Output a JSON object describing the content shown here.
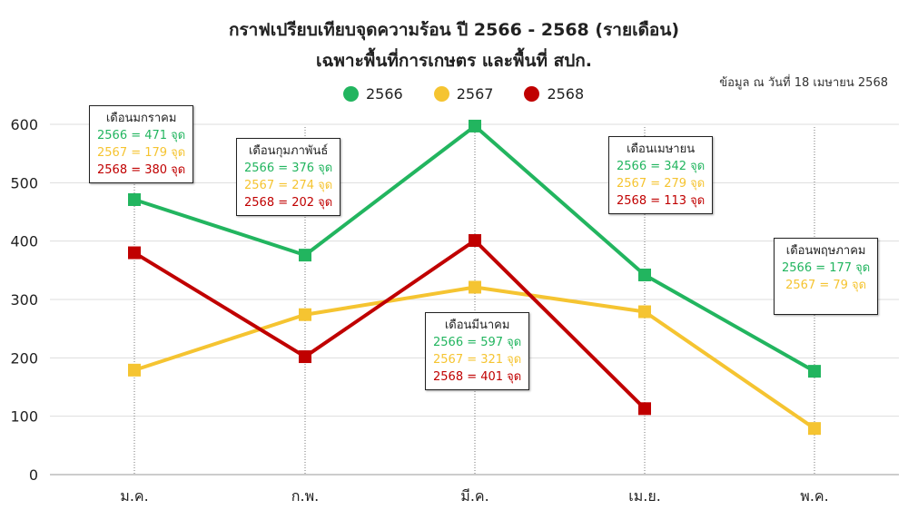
{
  "title_line1": "กราฟเปรียบเทียบจุดความร้อน ปี 2566 - 2568 (รายเดือน)",
  "title_line2": "เฉพาะพื้นที่การเกษตร และพื้นที่ สปก.",
  "note": "ข้อมูล ณ วันที่ 18 เมษายน 2568",
  "colors": {
    "s2566": "#22b55f",
    "s2567": "#f5c431",
    "s2568": "#c00000"
  },
  "legend": [
    "2566",
    "2567",
    "2568"
  ],
  "callouts": {
    "jan": {
      "title": "เดือนมกราคม",
      "l2566": "2566 = 471 จุด",
      "l2567": "2567 = 179 จุด",
      "l2568": "2568 = 380 จุด"
    },
    "feb": {
      "title": "เดือนกุมภาพันธ์",
      "l2566": "2566 = 376 จุด",
      "l2567": "2567 = 274 จุด",
      "l2568": "2568 = 202 จุด"
    },
    "mar": {
      "title": "เดือนมีนาคม",
      "l2566": "2566 = 597 จุด",
      "l2567": "2567 = 321 จุด",
      "l2568": "2568 = 401 จุด"
    },
    "apr": {
      "title": "เดือนเมษายน",
      "l2566": "2566 = 342 จุด",
      "l2567": "2567 = 279 จุด",
      "l2568": "2568 = 113 จุด"
    },
    "may": {
      "title": "เดือนพฤษภาคม",
      "l2566": "2566 = 177 จุด",
      "l2567": "2567 = 79 จุด"
    }
  },
  "chart_data": {
    "type": "line",
    "title": "กราฟเปรียบเทียบจุดความร้อน ปี 2566 - 2568 (รายเดือน)",
    "subtitle": "เฉพาะพื้นที่การเกษตร และพื้นที่ สปก.",
    "categories": [
      "ม.ค.",
      "ก.พ.",
      "มี.ค.",
      "เม.ย.",
      "พ.ค."
    ],
    "series": [
      {
        "name": "2566",
        "values": [
          471,
          376,
          597,
          342,
          177
        ]
      },
      {
        "name": "2567",
        "values": [
          179,
          274,
          321,
          279,
          79
        ]
      },
      {
        "name": "2568",
        "values": [
          380,
          202,
          401,
          113,
          null
        ]
      }
    ],
    "yticks": [
      0,
      100,
      200,
      300,
      400,
      500,
      600
    ],
    "ylim": [
      0,
      600
    ],
    "grid": true,
    "legend_position": "top-center"
  }
}
